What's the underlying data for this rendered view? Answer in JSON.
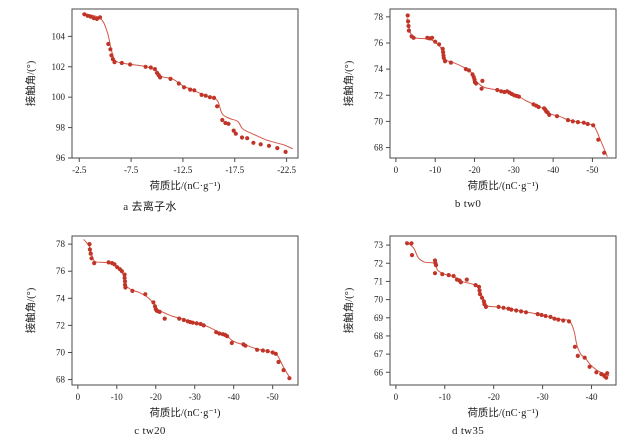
{
  "figure": {
    "background": "#ffffff",
    "description_labels": {
      "x_axis_label": "荷质比/(nC·g⁻¹)",
      "y_axis_label": "接触角/(°)"
    }
  },
  "colors": {
    "point": "#c03527",
    "line": "#d2574a",
    "axis": "#4a4a4a",
    "text": "#1c1c1c"
  },
  "chart_data": [
    {
      "id": "a",
      "type": "scatter",
      "caption": "a  去离子水",
      "xlabel": "荷质比/(nC·g⁻¹)",
      "ylabel": "接触角/(°)",
      "xlim": [
        -1.8,
        -23.6
      ],
      "ylim": [
        96,
        105.8
      ],
      "xticks": [
        -2.5,
        -7.5,
        -12.5,
        -17.5,
        -22.5
      ],
      "yticks": [
        96,
        98,
        100,
        102,
        104
      ],
      "grid": false,
      "legend": "none",
      "points": [
        [
          -3.0,
          105.45
        ],
        [
          -3.3,
          105.35
        ],
        [
          -3.6,
          105.3
        ],
        [
          -3.9,
          105.2
        ],
        [
          -4.2,
          105.15
        ],
        [
          -4.5,
          105.25
        ],
        [
          -5.3,
          103.5
        ],
        [
          -5.5,
          103.15
        ],
        [
          -5.6,
          102.75
        ],
        [
          -5.75,
          102.5
        ],
        [
          -5.9,
          102.3
        ],
        [
          -6.6,
          102.25
        ],
        [
          -7.4,
          102.15
        ],
        [
          -8.9,
          102.0
        ],
        [
          -9.4,
          101.95
        ],
        [
          -9.8,
          101.85
        ],
        [
          -10.0,
          101.6
        ],
        [
          -10.15,
          101.45
        ],
        [
          -10.3,
          101.3
        ],
        [
          -11.3,
          101.2
        ],
        [
          -12.1,
          100.9
        ],
        [
          -12.6,
          100.65
        ],
        [
          -13.2,
          100.5
        ],
        [
          -13.6,
          100.45
        ],
        [
          -14.3,
          100.15
        ],
        [
          -14.7,
          100.1
        ],
        [
          -15.1,
          100.0
        ],
        [
          -15.5,
          99.95
        ],
        [
          -15.8,
          99.4
        ],
        [
          -16.3,
          98.5
        ],
        [
          -16.6,
          98.3
        ],
        [
          -16.9,
          98.25
        ],
        [
          -17.4,
          97.8
        ],
        [
          -17.6,
          97.6
        ],
        [
          -18.2,
          97.35
        ],
        [
          -18.7,
          97.3
        ],
        [
          -19.3,
          97.0
        ],
        [
          -20.0,
          96.9
        ],
        [
          -20.8,
          96.8
        ],
        [
          -21.6,
          96.65
        ],
        [
          -22.4,
          96.4
        ]
      ],
      "trend": [
        [
          -2.8,
          105.5
        ],
        [
          -4.5,
          105.2
        ],
        [
          -5.2,
          104.3
        ],
        [
          -5.6,
          103.1
        ],
        [
          -6.0,
          102.4
        ],
        [
          -7.0,
          102.2
        ],
        [
          -9.0,
          102.0
        ],
        [
          -10.0,
          101.7
        ],
        [
          -10.5,
          101.35
        ],
        [
          -11.5,
          101.2
        ],
        [
          -12.5,
          100.75
        ],
        [
          -13.5,
          100.45
        ],
        [
          -15.0,
          100.0
        ],
        [
          -15.8,
          99.8
        ],
        [
          -16.3,
          98.9
        ],
        [
          -17.0,
          98.6
        ],
        [
          -17.8,
          98.4
        ],
        [
          -18.3,
          97.9
        ],
        [
          -19.5,
          97.5
        ],
        [
          -20.5,
          97.2
        ],
        [
          -21.5,
          97.0
        ],
        [
          -22.3,
          96.85
        ],
        [
          -23.1,
          96.6
        ]
      ]
    },
    {
      "id": "b",
      "type": "scatter",
      "caption": "b  tw0",
      "xlabel": "荷质比/(nC·g⁻¹)",
      "ylabel": "接触角/(°)",
      "xlim": [
        1.5,
        -56
      ],
      "ylim": [
        67.2,
        78.6
      ],
      "xticks": [
        0,
        -10,
        -20,
        -30,
        -40,
        -50
      ],
      "yticks": [
        68,
        70,
        72,
        74,
        76,
        78
      ],
      "grid": false,
      "legend": "none",
      "points": [
        [
          -3.0,
          78.1
        ],
        [
          -3.1,
          77.65
        ],
        [
          -3.2,
          77.3
        ],
        [
          -3.3,
          76.95
        ],
        [
          -4.0,
          76.5
        ],
        [
          -4.5,
          76.4
        ],
        [
          -8.0,
          76.4
        ],
        [
          -8.6,
          76.35
        ],
        [
          -9.2,
          76.4
        ],
        [
          -10.0,
          76.1
        ],
        [
          -11.0,
          75.9
        ],
        [
          -11.9,
          75.55
        ],
        [
          -12.0,
          75.3
        ],
        [
          -12.1,
          75.05
        ],
        [
          -12.2,
          74.85
        ],
        [
          -12.5,
          74.6
        ],
        [
          -14.0,
          74.5
        ],
        [
          -17.8,
          74.0
        ],
        [
          -18.6,
          73.9
        ],
        [
          -19.5,
          73.6
        ],
        [
          -19.8,
          73.4
        ],
        [
          -20.0,
          73.2
        ],
        [
          -20.1,
          73.0
        ],
        [
          -20.4,
          72.9
        ],
        [
          -22.0,
          73.1
        ],
        [
          -21.8,
          72.5
        ],
        [
          -25.8,
          72.4
        ],
        [
          -26.8,
          72.3
        ],
        [
          -27.6,
          72.25
        ],
        [
          -28.3,
          72.3
        ],
        [
          -28.9,
          72.2
        ],
        [
          -29.5,
          72.1
        ],
        [
          -30.1,
          72.0
        ],
        [
          -30.7,
          71.95
        ],
        [
          -31.3,
          71.9
        ],
        [
          -35.0,
          71.3
        ],
        [
          -35.7,
          71.2
        ],
        [
          -36.3,
          71.1
        ],
        [
          -37.7,
          71.0
        ],
        [
          -38.0,
          70.9
        ],
        [
          -38.3,
          70.75
        ],
        [
          -38.6,
          70.7
        ],
        [
          -39.0,
          70.5
        ],
        [
          -41.0,
          70.4
        ],
        [
          -43.8,
          70.1
        ],
        [
          -45.0,
          70.0
        ],
        [
          -46.3,
          69.95
        ],
        [
          -47.8,
          69.9
        ],
        [
          -48.8,
          69.8
        ],
        [
          -50.2,
          69.7
        ],
        [
          -51.5,
          68.6
        ],
        [
          -53.0,
          67.6
        ]
      ],
      "trend": [
        [
          -2.8,
          77.9
        ],
        [
          -3.6,
          76.9
        ],
        [
          -4.3,
          76.45
        ],
        [
          -6.0,
          76.35
        ],
        [
          -8.5,
          76.3
        ],
        [
          -10.0,
          76.05
        ],
        [
          -11.5,
          75.6
        ],
        [
          -12.3,
          74.95
        ],
        [
          -13.0,
          74.65
        ],
        [
          -15.0,
          74.45
        ],
        [
          -17.5,
          74.1
        ],
        [
          -19.0,
          73.8
        ],
        [
          -20.0,
          73.3
        ],
        [
          -20.8,
          72.95
        ],
        [
          -22.5,
          72.6
        ],
        [
          -25.0,
          72.45
        ],
        [
          -28.0,
          72.3
        ],
        [
          -31.0,
          71.95
        ],
        [
          -33.0,
          71.6
        ],
        [
          -35.5,
          71.25
        ],
        [
          -38.0,
          70.9
        ],
        [
          -39.5,
          70.55
        ],
        [
          -41.5,
          70.4
        ],
        [
          -44.0,
          70.1
        ],
        [
          -46.5,
          69.95
        ],
        [
          -49.0,
          69.8
        ],
        [
          -50.5,
          69.6
        ],
        [
          -52.0,
          68.6
        ],
        [
          -53.8,
          67.3
        ]
      ]
    },
    {
      "id": "c",
      "type": "scatter",
      "caption": "c  tw20",
      "xlabel": "荷质比/(nC·g⁻¹)",
      "ylabel": "接触角/(°)",
      "xlim": [
        1.5,
        -56.5
      ],
      "ylim": [
        67.6,
        78.6
      ],
      "xticks": [
        0,
        -10,
        -20,
        -30,
        -40,
        -50
      ],
      "yticks": [
        68,
        70,
        72,
        74,
        76,
        78
      ],
      "grid": false,
      "legend": "none",
      "points": [
        [
          -3.0,
          78.0
        ],
        [
          -3.1,
          77.6
        ],
        [
          -3.3,
          77.3
        ],
        [
          -3.5,
          76.95
        ],
        [
          -4.2,
          76.6
        ],
        [
          -7.9,
          76.65
        ],
        [
          -8.8,
          76.6
        ],
        [
          -9.4,
          76.5
        ],
        [
          -10.1,
          76.3
        ],
        [
          -10.8,
          76.15
        ],
        [
          -11.3,
          76.0
        ],
        [
          -12.0,
          75.75
        ],
        [
          -12.0,
          75.5
        ],
        [
          -12.1,
          75.25
        ],
        [
          -12.1,
          75.0
        ],
        [
          -12.2,
          74.8
        ],
        [
          -14.0,
          74.55
        ],
        [
          -17.3,
          74.3
        ],
        [
          -19.4,
          73.7
        ],
        [
          -19.8,
          73.4
        ],
        [
          -20.0,
          73.2
        ],
        [
          -20.2,
          73.1
        ],
        [
          -20.5,
          73.05
        ],
        [
          -21.0,
          73.0
        ],
        [
          -22.3,
          72.5
        ],
        [
          -26.0,
          72.5
        ],
        [
          -27.2,
          72.4
        ],
        [
          -28.2,
          72.3
        ],
        [
          -28.8,
          72.25
        ],
        [
          -29.5,
          72.2
        ],
        [
          -30.5,
          72.15
        ],
        [
          -31.5,
          72.1
        ],
        [
          -32.3,
          72.0
        ],
        [
          -35.5,
          71.5
        ],
        [
          -36.3,
          71.4
        ],
        [
          -37.2,
          71.35
        ],
        [
          -37.8,
          71.3
        ],
        [
          -38.3,
          71.2
        ],
        [
          -39.5,
          70.7
        ],
        [
          -42.5,
          70.6
        ],
        [
          -43.0,
          70.5
        ],
        [
          -46.0,
          70.2
        ],
        [
          -47.5,
          70.15
        ],
        [
          -48.7,
          70.1
        ],
        [
          -50.0,
          70.0
        ],
        [
          -50.8,
          69.9
        ],
        [
          -51.5,
          69.3
        ],
        [
          -52.8,
          68.7
        ],
        [
          -54.3,
          68.1
        ]
      ],
      "trend": [
        [
          -1.5,
          78.35
        ],
        [
          -3.0,
          77.8
        ],
        [
          -3.8,
          77.0
        ],
        [
          -4.5,
          76.7
        ],
        [
          -6.5,
          76.65
        ],
        [
          -9.0,
          76.55
        ],
        [
          -11.0,
          76.05
        ],
        [
          -12.0,
          75.5
        ],
        [
          -12.5,
          74.9
        ],
        [
          -14.0,
          74.6
        ],
        [
          -16.0,
          74.4
        ],
        [
          -18.0,
          74.05
        ],
        [
          -19.5,
          73.6
        ],
        [
          -20.5,
          73.15
        ],
        [
          -22.0,
          72.95
        ],
        [
          -24.0,
          72.7
        ],
        [
          -26.5,
          72.5
        ],
        [
          -29.5,
          72.25
        ],
        [
          -32.5,
          72.0
        ],
        [
          -34.5,
          71.75
        ],
        [
          -36.5,
          71.45
        ],
        [
          -38.0,
          71.3
        ],
        [
          -39.5,
          70.9
        ],
        [
          -41.0,
          70.7
        ],
        [
          -43.0,
          70.55
        ],
        [
          -45.0,
          70.35
        ],
        [
          -47.5,
          70.15
        ],
        [
          -50.0,
          70.0
        ],
        [
          -51.2,
          69.8
        ],
        [
          -52.8,
          68.9
        ],
        [
          -54.6,
          68.05
        ]
      ]
    },
    {
      "id": "d",
      "type": "scatter",
      "caption": "d  tw35",
      "xlabel": "荷质比/(nC·g⁻¹)",
      "ylabel": "接触角/(°)",
      "xlim": [
        1.2,
        -45
      ],
      "ylim": [
        65.3,
        73.5
      ],
      "xticks": [
        0,
        -10,
        -20,
        -30,
        -40
      ],
      "yticks": [
        66,
        67,
        68,
        69,
        70,
        71,
        72,
        73
      ],
      "grid": false,
      "legend": "none",
      "points": [
        [
          -2.3,
          73.1
        ],
        [
          -3.2,
          73.1
        ],
        [
          -3.3,
          72.45
        ],
        [
          -8.0,
          72.15
        ],
        [
          -8.1,
          72.0
        ],
        [
          -8.2,
          71.9
        ],
        [
          -8.0,
          71.45
        ],
        [
          -9.5,
          71.4
        ],
        [
          -10.8,
          71.35
        ],
        [
          -11.8,
          71.3
        ],
        [
          -12.5,
          71.1
        ],
        [
          -13.0,
          71.05
        ],
        [
          -13.3,
          70.95
        ],
        [
          -14.5,
          71.1
        ],
        [
          -16.3,
          70.8
        ],
        [
          -17.0,
          70.7
        ],
        [
          -17.1,
          70.5
        ],
        [
          -17.2,
          70.3
        ],
        [
          -17.6,
          70.1
        ],
        [
          -18.0,
          69.9
        ],
        [
          -18.1,
          69.75
        ],
        [
          -18.4,
          69.6
        ],
        [
          -21.0,
          69.6
        ],
        [
          -22.0,
          69.55
        ],
        [
          -23.0,
          69.5
        ],
        [
          -23.6,
          69.45
        ],
        [
          -24.6,
          69.4
        ],
        [
          -25.6,
          69.35
        ],
        [
          -26.6,
          69.3
        ],
        [
          -29.0,
          69.2
        ],
        [
          -29.8,
          69.15
        ],
        [
          -30.6,
          69.1
        ],
        [
          -31.6,
          69.05
        ],
        [
          -32.4,
          68.95
        ],
        [
          -33.2,
          68.9
        ],
        [
          -34.2,
          68.85
        ],
        [
          -35.4,
          68.8
        ],
        [
          -36.6,
          67.4
        ],
        [
          -37.2,
          66.9
        ],
        [
          -38.6,
          66.8
        ],
        [
          -39.6,
          66.3
        ],
        [
          -41.0,
          66.0
        ],
        [
          -42.0,
          65.9
        ],
        [
          -42.6,
          65.8
        ],
        [
          -43.0,
          65.7
        ],
        [
          -43.2,
          65.95
        ]
      ],
      "trend": [
        [
          -2.0,
          73.2
        ],
        [
          -3.6,
          72.85
        ],
        [
          -4.6,
          72.3
        ],
        [
          -6.0,
          72.05
        ],
        [
          -7.8,
          72.0
        ],
        [
          -8.6,
          71.6
        ],
        [
          -10.0,
          71.4
        ],
        [
          -12.0,
          71.25
        ],
        [
          -13.5,
          71.0
        ],
        [
          -15.0,
          70.9
        ],
        [
          -16.5,
          70.75
        ],
        [
          -17.3,
          70.4
        ],
        [
          -18.0,
          69.95
        ],
        [
          -18.8,
          69.65
        ],
        [
          -20.5,
          69.6
        ],
        [
          -23.0,
          69.5
        ],
        [
          -26.0,
          69.35
        ],
        [
          -29.0,
          69.2
        ],
        [
          -32.0,
          69.0
        ],
        [
          -34.0,
          68.9
        ],
        [
          -35.5,
          68.82
        ],
        [
          -36.4,
          68.3
        ],
        [
          -37.0,
          67.5
        ],
        [
          -37.8,
          67.0
        ],
        [
          -38.8,
          66.75
        ],
        [
          -39.8,
          66.4
        ],
        [
          -41.2,
          66.1
        ],
        [
          -42.6,
          65.92
        ],
        [
          -43.6,
          65.8
        ]
      ]
    }
  ]
}
